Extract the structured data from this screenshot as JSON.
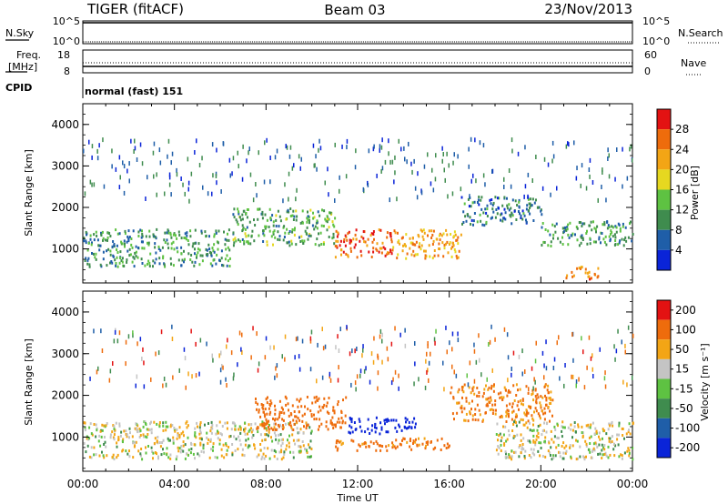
{
  "header": {
    "title": "TIGER (fitACF)",
    "beam": "Beam 03",
    "date": "23/Nov/2013"
  },
  "strip": {
    "nsky_label": "N.Sky",
    "nsky_ticks": [
      "10^5",
      "10^0"
    ],
    "nsearch_label": "N.Search",
    "nsearch_ticks": [
      "10^5",
      "10^0"
    ],
    "freq_label": "Freq.",
    "freq_unit": "[MHz]",
    "freq_ticks": [
      "18",
      "8"
    ],
    "nave_label": "Nave",
    "nave_ticks": [
      "60",
      "0"
    ],
    "cpid_label": "CPID",
    "cpid_text": "normal (fast) 151"
  },
  "axes": {
    "ylabel": "Slant Range [km]",
    "xlabel": "Time UT",
    "y_ticks": [
      "1000",
      "2000",
      "3000",
      "4000"
    ],
    "x_ticks": [
      "00:00",
      "04:00",
      "08:00",
      "12:00",
      "16:00",
      "20:00",
      "00:00"
    ]
  },
  "colorbars": {
    "power": {
      "label": "Power [dB]",
      "ticks": [
        "4",
        "8",
        "12",
        "16",
        "20",
        "24",
        "28"
      ],
      "colors": [
        "#0a24d8",
        "#1f5ea8",
        "#3f8c4e",
        "#5ec242",
        "#e6d820",
        "#f3a515",
        "#ee6c0c",
        "#e31212"
      ]
    },
    "velocity": {
      "label": "Velocity [m s⁻¹]",
      "ticks": [
        "200",
        "100",
        "50",
        "15",
        "-15",
        "-50",
        "-100",
        "-200"
      ],
      "colors": [
        "#0a24d8",
        "#1f5ea8",
        "#3f8c4e",
        "#5ec242",
        "#c4c4c4",
        "#f3a515",
        "#ee6c0c",
        "#e31212"
      ]
    }
  },
  "chart_data": [
    {
      "type": "heatmap",
      "name": "power",
      "x_range_hours": [
        0,
        24
      ],
      "ylim": [
        180,
        4500
      ],
      "ylabel": "Slant Range [km]",
      "xlabel": "Time UT",
      "colorbar_label": "Power [dB]",
      "bands": [
        {
          "t": [
            0,
            6.5
          ],
          "range": [
            600,
            1500
          ],
          "dB": 10
        },
        {
          "t": [
            6.5,
            11
          ],
          "range": [
            1100,
            2000
          ],
          "dB": 12
        },
        {
          "t": [
            11,
            13.5
          ],
          "range": [
            800,
            1500
          ],
          "dB": 27
        },
        {
          "t": [
            13.5,
            16.5
          ],
          "range": [
            800,
            1500
          ],
          "dB": 22
        },
        {
          "t": [
            16.5,
            20
          ],
          "range": [
            1600,
            2300
          ],
          "dB": 8
        },
        {
          "t": [
            20,
            24
          ],
          "range": [
            1100,
            1700
          ],
          "dB": 11
        },
        {
          "t": [
            21,
            22.5
          ],
          "range": [
            300,
            600
          ],
          "dB": 24
        }
      ]
    },
    {
      "type": "heatmap",
      "name": "velocity",
      "x_range_hours": [
        0,
        24
      ],
      "ylim": [
        180,
        4500
      ],
      "ylabel": "Slant Range [km]",
      "xlabel": "Time UT",
      "colorbar_label": "Velocity [m s⁻¹]",
      "bands": [
        {
          "t": [
            0,
            10
          ],
          "range": [
            500,
            1400
          ],
          "velocity": 0
        },
        {
          "t": [
            7.5,
            11.5
          ],
          "range": [
            1200,
            2000
          ],
          "velocity": -100
        },
        {
          "t": [
            11.5,
            14.5
          ],
          "range": [
            1100,
            1500
          ],
          "velocity": 200
        },
        {
          "t": [
            11,
            16
          ],
          "range": [
            700,
            1000
          ],
          "velocity": -80
        },
        {
          "t": [
            16,
            20.5
          ],
          "range": [
            1400,
            2300
          ],
          "velocity": -60
        },
        {
          "t": [
            18,
            24
          ],
          "range": [
            500,
            1400
          ],
          "velocity": 0
        }
      ]
    }
  ]
}
